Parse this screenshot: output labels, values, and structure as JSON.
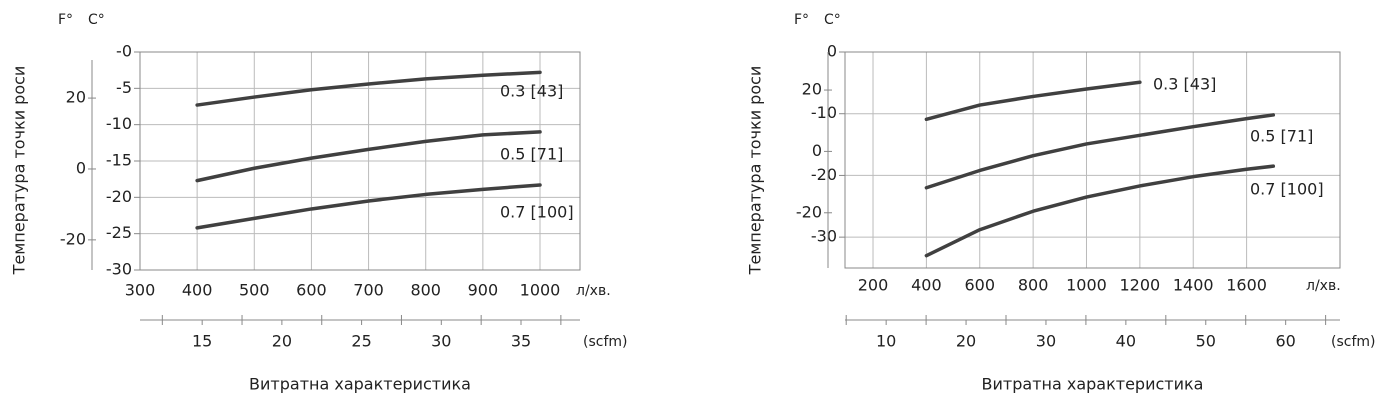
{
  "chart_data": [
    {
      "type": "line",
      "y2_unit": "F°",
      "y_unit": "C°",
      "ylabel": "Температура точки роси",
      "xlabel": "Витратна характеристика",
      "x_unit": "л/хв.",
      "x2_unit": "(scfm)",
      "x": [
        400,
        500,
        600,
        700,
        800,
        900,
        1000
      ],
      "xlim": [
        300,
        1070
      ],
      "xticks": [
        300,
        400,
        500,
        600,
        700,
        800,
        900,
        1000
      ],
      "ylim": [
        -30,
        0
      ],
      "yticks": [
        {
          "value": 0,
          "label": "-0"
        },
        -5,
        -10,
        -15,
        -20,
        -25,
        -30
      ],
      "y2lim": [
        -28.5,
        33
      ],
      "y2ticks": [
        20,
        0,
        -20
      ],
      "x2lim": [
        11.1,
        38.7
      ],
      "x2ticks": [
        15,
        20,
        25,
        30,
        35
      ],
      "x2minorticks": [
        12.5,
        17.5,
        22.5,
        27.5,
        32.5,
        37.5
      ],
      "grid": true,
      "series": [
        {
          "name": "0.3 [43]",
          "color": "#404040",
          "values": [
            -7.3,
            -6.2,
            -5.2,
            -4.4,
            -3.7,
            -3.2,
            -2.8
          ]
        },
        {
          "name": "0.5 [71]",
          "color": "#404040",
          "values": [
            -17.7,
            -16.0,
            -14.6,
            -13.4,
            -12.3,
            -11.4,
            -11.0
          ]
        },
        {
          "name": "0.7 [100]",
          "color": "#404040",
          "values": [
            -24.2,
            -22.9,
            -21.6,
            -20.5,
            -19.6,
            -18.9,
            -18.3
          ]
        }
      ]
    },
    {
      "type": "line",
      "y2_unit": "F°",
      "y_unit": "C°",
      "ylabel": "Температура точки роси",
      "xlabel": "Витратна характеристика",
      "x_unit": "л/хв.",
      "x2_unit": "(scfm)",
      "x": [
        400,
        600,
        800,
        1000,
        1200,
        1400,
        1600,
        1700
      ],
      "xlim": [
        95,
        1950
      ],
      "xticks": [
        200,
        400,
        600,
        800,
        1000,
        1200,
        1400,
        1600
      ],
      "ylim": [
        -35,
        0
      ],
      "yticks": [
        0,
        -10,
        -20,
        -30
      ],
      "y2lim": [
        -38,
        32.4
      ],
      "y2ticks": [
        20,
        0,
        -20
      ],
      "x2lim": [
        4.85,
        66.8
      ],
      "x2ticks": [
        10,
        20,
        30,
        40,
        50,
        60
      ],
      "x2minorticks": [
        5,
        15,
        25,
        35,
        45,
        55,
        65
      ],
      "grid": true,
      "series": [
        {
          "name": "0.3 [43]",
          "color": "#404040",
          "values": [
            -10.9,
            -8.6,
            -7.2,
            -6.0,
            -4.9,
            null,
            null,
            null
          ]
        },
        {
          "name": "0.5 [71]",
          "color": "#404040",
          "values": [
            -22.0,
            -19.2,
            -16.8,
            -14.9,
            -13.5,
            -12.1,
            -10.8,
            -10.2
          ]
        },
        {
          "name": "0.7 [100]",
          "color": "#404040",
          "values": [
            -33.0,
            -28.8,
            -25.8,
            -23.5,
            -21.7,
            -20.2,
            -19.0,
            -18.5
          ]
        }
      ]
    }
  ]
}
